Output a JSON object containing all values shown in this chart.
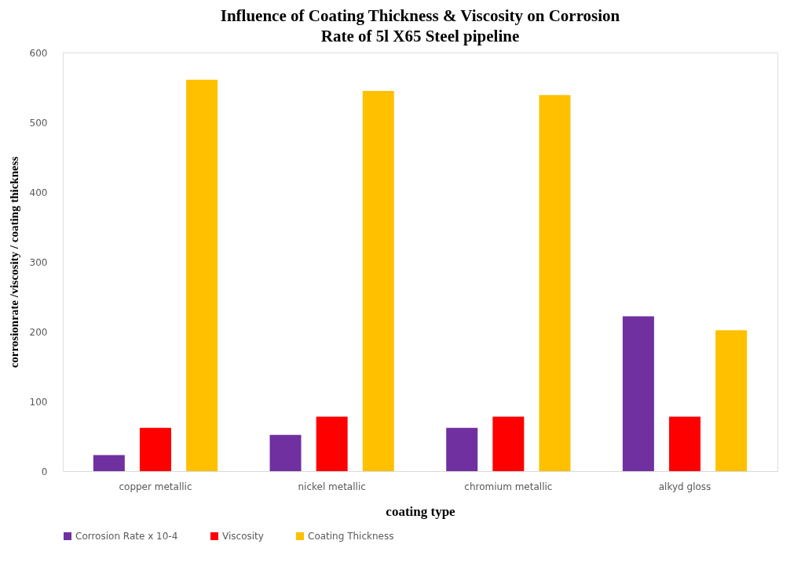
{
  "chart_data": {
    "type": "bar",
    "title": "Influence of Coating Thickness & Viscosity on Corrosion Rate of 5l X65 Steel pipeline",
    "xlabel": "coating type",
    "ylabel": "corrosionrate /viscosity / coating thickness",
    "categories": [
      "copper metallic",
      "nickel metallic",
      "chromium metallic",
      "alkyd gloss"
    ],
    "series": [
      {
        "name": "Corrosion Rate x 10-4",
        "color": "#7030a0",
        "values": [
          23,
          52,
          62,
          222
        ]
      },
      {
        "name": "Viscosity",
        "color": "#ff0000",
        "values": [
          62,
          78,
          78,
          78
        ]
      },
      {
        "name": "Coating Thickness",
        "color": "#ffc000",
        "values": [
          561,
          545,
          539,
          202
        ]
      }
    ],
    "ylim": [
      0,
      600
    ],
    "yticks": [
      0,
      100,
      200,
      300,
      400,
      500,
      600
    ],
    "grid": false,
    "legend": "bottom"
  }
}
